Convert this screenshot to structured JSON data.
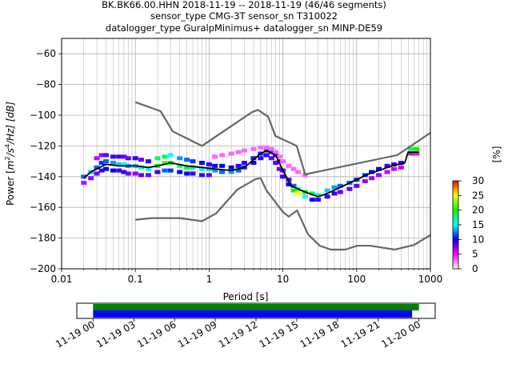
{
  "title_lines": [
    "BK.BK66.00.HHN   2018-11-19 -- 2018-11-19  (46/46 segments)",
    "sensor_type CMG-3T sensor_sn T310022",
    "datalogger_type GuralpMinimus+ datalogger_sn MINP-DE59"
  ],
  "chart_data": {
    "type": "heatmap",
    "title": "BK.BK66.00.HHN   2018-11-19 -- 2018-11-19  (46/46 segments)",
    "xlabel": "Period [s]",
    "ylabel": "Power [m²/s⁴/Hz] [dB]",
    "ylabel_parts": {
      "prefix": "Power [",
      "m": "m",
      "m_sup": "2",
      "s": "/s",
      "s_sup": "4",
      "rest": "/Hz] [dB]"
    },
    "xscale": "log",
    "xlim": [
      0.01,
      1000
    ],
    "ylim": [
      -200,
      -50
    ],
    "xticks": [
      0.01,
      0.1,
      1,
      10,
      100,
      1000
    ],
    "xtick_labels": [
      "0.01",
      "0.1",
      "1",
      "10",
      "100",
      "1000"
    ],
    "yticks": [
      -200,
      -180,
      -160,
      -140,
      -120,
      -100,
      -80,
      -60
    ],
    "ytick_labels": [
      "−200",
      "−180",
      "−160",
      "−140",
      "−120",
      "−100",
      "−80",
      "−60"
    ],
    "grid": true,
    "colorbar": {
      "label": "[%]",
      "range": [
        0,
        30
      ],
      "ticks": [
        0,
        5,
        10,
        15,
        20,
        25,
        30
      ],
      "tick_labels": [
        "0",
        "5",
        "10",
        "15",
        "20",
        "25",
        "30"
      ],
      "colormap": [
        "#ffffff",
        "#ff00ff",
        "#0000ff",
        "#00ffff",
        "#00ff00",
        "#ffff00",
        "#ff0000"
      ]
    },
    "mean_curve": {
      "color": "#000000",
      "x": [
        0.02,
        0.025,
        0.03,
        0.04,
        0.06,
        0.1,
        0.15,
        0.2,
        0.3,
        0.5,
        0.8,
        1.2,
        2,
        3,
        4,
        5,
        6,
        8,
        10,
        13,
        16,
        20,
        30,
        40,
        60,
        100,
        150,
        200,
        300,
        450,
        500,
        700
      ],
      "y": [
        -141,
        -137,
        -135,
        -132,
        -133,
        -133,
        -134,
        -133,
        -131,
        -133,
        -134,
        -135,
        -136,
        -134,
        -129,
        -125,
        -123,
        -126,
        -136,
        -146,
        -148,
        -150,
        -153,
        -151,
        -147,
        -142,
        -138,
        -136,
        -133,
        -131,
        -124,
        -124
      ]
    },
    "noise_models": [
      {
        "name": "high",
        "color": "#666666",
        "x": [
          0.1,
          0.22,
          0.32,
          0.8,
          3.8,
          4.6,
          6.3,
          7.9,
          15.4,
          20,
          354.8,
          1000
        ],
        "y": [
          -91.5,
          -97.4,
          -110.5,
          -120,
          -98,
          -96.5,
          -101,
          -113.5,
          -120,
          -138.5,
          -126,
          -111.5
        ]
      },
      {
        "name": "low",
        "color": "#666666",
        "x": [
          0.1,
          0.17,
          0.4,
          0.8,
          1.24,
          2.4,
          4.3,
          5,
          6,
          10,
          12,
          15.6,
          21.9,
          31.6,
          45,
          70,
          101,
          154,
          328,
          600,
          1000
        ],
        "y": [
          -168,
          -167,
          -167,
          -169,
          -164,
          -148.5,
          -141.5,
          -141,
          -149,
          -163,
          -166,
          -162,
          -177.5,
          -185,
          -187.5,
          -187.5,
          -185,
          -185,
          -187.5,
          -184.5,
          -178
        ]
      }
    ],
    "density_points": [
      {
        "x": 0.02,
        "y": -140,
        "p": 12
      },
      {
        "x": 0.02,
        "y": -144,
        "p": 6
      },
      {
        "x": 0.025,
        "y": -137,
        "p": 14
      },
      {
        "x": 0.025,
        "y": -141,
        "p": 7
      },
      {
        "x": 0.03,
        "y": -134,
        "p": 12
      },
      {
        "x": 0.03,
        "y": -128,
        "p": 6
      },
      {
        "x": 0.03,
        "y": -138,
        "p": 8
      },
      {
        "x": 0.035,
        "y": -126,
        "p": 7
      },
      {
        "x": 0.035,
        "y": -131,
        "p": 11
      },
      {
        "x": 0.035,
        "y": -136,
        "p": 9
      },
      {
        "x": 0.04,
        "y": -126,
        "p": 8
      },
      {
        "x": 0.04,
        "y": -130,
        "p": 12
      },
      {
        "x": 0.04,
        "y": -135,
        "p": 10
      },
      {
        "x": 0.05,
        "y": -127,
        "p": 9
      },
      {
        "x": 0.05,
        "y": -131,
        "p": 13
      },
      {
        "x": 0.05,
        "y": -136,
        "p": 10
      },
      {
        "x": 0.06,
        "y": -127,
        "p": 9
      },
      {
        "x": 0.06,
        "y": -132,
        "p": 14
      },
      {
        "x": 0.06,
        "y": -136,
        "p": 9
      },
      {
        "x": 0.07,
        "y": -127,
        "p": 8
      },
      {
        "x": 0.07,
        "y": -132,
        "p": 15
      },
      {
        "x": 0.07,
        "y": -137,
        "p": 9
      },
      {
        "x": 0.08,
        "y": -128,
        "p": 8
      },
      {
        "x": 0.08,
        "y": -133,
        "p": 13
      },
      {
        "x": 0.08,
        "y": -138,
        "p": 8
      },
      {
        "x": 0.1,
        "y": -128,
        "p": 9
      },
      {
        "x": 0.1,
        "y": -133,
        "p": 14
      },
      {
        "x": 0.1,
        "y": -138,
        "p": 7
      },
      {
        "x": 0.12,
        "y": -129,
        "p": 8
      },
      {
        "x": 0.12,
        "y": -134,
        "p": 16
      },
      {
        "x": 0.12,
        "y": -139,
        "p": 8
      },
      {
        "x": 0.15,
        "y": -130,
        "p": 9
      },
      {
        "x": 0.15,
        "y": -135,
        "p": 15
      },
      {
        "x": 0.15,
        "y": -139,
        "p": 8
      },
      {
        "x": 0.2,
        "y": -128,
        "p": 18
      },
      {
        "x": 0.2,
        "y": -133,
        "p": 20
      },
      {
        "x": 0.2,
        "y": -137,
        "p": 9
      },
      {
        "x": 0.25,
        "y": -127,
        "p": 18
      },
      {
        "x": 0.25,
        "y": -131,
        "p": 22
      },
      {
        "x": 0.25,
        "y": -136,
        "p": 12
      },
      {
        "x": 0.3,
        "y": -126,
        "p": 15
      },
      {
        "x": 0.3,
        "y": -131,
        "p": 20
      },
      {
        "x": 0.3,
        "y": -136,
        "p": 11
      },
      {
        "x": 0.4,
        "y": -128,
        "p": 13
      },
      {
        "x": 0.4,
        "y": -133,
        "p": 18
      },
      {
        "x": 0.4,
        "y": -137,
        "p": 10
      },
      {
        "x": 0.5,
        "y": -129,
        "p": 12
      },
      {
        "x": 0.5,
        "y": -134,
        "p": 19
      },
      {
        "x": 0.5,
        "y": -138,
        "p": 10
      },
      {
        "x": 0.6,
        "y": -130,
        "p": 11
      },
      {
        "x": 0.6,
        "y": -134,
        "p": 17
      },
      {
        "x": 0.6,
        "y": -138,
        "p": 9
      },
      {
        "x": 0.8,
        "y": -131,
        "p": 10
      },
      {
        "x": 0.8,
        "y": -135,
        "p": 16
      },
      {
        "x": 0.8,
        "y": -139,
        "p": 9
      },
      {
        "x": 1,
        "y": -132,
        "p": 9
      },
      {
        "x": 1,
        "y": -135,
        "p": 14
      },
      {
        "x": 1,
        "y": -139,
        "p": 8
      },
      {
        "x": 1.2,
        "y": -133,
        "p": 10
      },
      {
        "x": 1.2,
        "y": -136,
        "p": 13
      },
      {
        "x": 1.2,
        "y": -127,
        "p": 3
      },
      {
        "x": 1.5,
        "y": -133,
        "p": 10
      },
      {
        "x": 1.5,
        "y": -137,
        "p": 12
      },
      {
        "x": 1.5,
        "y": -126,
        "p": 3
      },
      {
        "x": 2,
        "y": -134,
        "p": 10
      },
      {
        "x": 2,
        "y": -137,
        "p": 13
      },
      {
        "x": 2,
        "y": -125,
        "p": 3
      },
      {
        "x": 2.5,
        "y": -133,
        "p": 9
      },
      {
        "x": 2.5,
        "y": -136,
        "p": 12
      },
      {
        "x": 2.5,
        "y": -124,
        "p": 3
      },
      {
        "x": 3,
        "y": -131,
        "p": 9
      },
      {
        "x": 3,
        "y": -134,
        "p": 11
      },
      {
        "x": 3,
        "y": -123,
        "p": 3
      },
      {
        "x": 4,
        "y": -128,
        "p": 9
      },
      {
        "x": 4,
        "y": -131,
        "p": 10
      },
      {
        "x": 4,
        "y": -122,
        "p": 3
      },
      {
        "x": 5,
        "y": -125,
        "p": 11
      },
      {
        "x": 5,
        "y": -128,
        "p": 9
      },
      {
        "x": 5,
        "y": -121,
        "p": 3
      },
      {
        "x": 6,
        "y": -123,
        "p": 12
      },
      {
        "x": 6,
        "y": -126,
        "p": 9
      },
      {
        "x": 6,
        "y": -121,
        "p": 3
      },
      {
        "x": 7,
        "y": -124,
        "p": 11
      },
      {
        "x": 7,
        "y": -128,
        "p": 8
      },
      {
        "x": 7,
        "y": -122,
        "p": 3
      },
      {
        "x": 8,
        "y": -126,
        "p": 10
      },
      {
        "x": 8,
        "y": -131,
        "p": 8
      },
      {
        "x": 8,
        "y": -124,
        "p": 3
      },
      {
        "x": 9,
        "y": -130,
        "p": 9
      },
      {
        "x": 9,
        "y": -135,
        "p": 8
      },
      {
        "x": 9,
        "y": -127,
        "p": 3
      },
      {
        "x": 10,
        "y": -136,
        "p": 8
      },
      {
        "x": 10,
        "y": -140,
        "p": 9
      },
      {
        "x": 10,
        "y": -130,
        "p": 3
      },
      {
        "x": 12,
        "y": -142,
        "p": 8
      },
      {
        "x": 12,
        "y": -145,
        "p": 10
      },
      {
        "x": 12,
        "y": -133,
        "p": 3
      },
      {
        "x": 14,
        "y": -146,
        "p": 12
      },
      {
        "x": 14,
        "y": -149,
        "p": 20
      },
      {
        "x": 14,
        "y": -135,
        "p": 3
      },
      {
        "x": 16,
        "y": -148,
        "p": 18
      },
      {
        "x": 16,
        "y": -151,
        "p": 25
      },
      {
        "x": 16,
        "y": -137,
        "p": 3
      },
      {
        "x": 20,
        "y": -150,
        "p": 20
      },
      {
        "x": 20,
        "y": -153,
        "p": 15
      },
      {
        "x": 20,
        "y": -139,
        "p": 3
      },
      {
        "x": 25,
        "y": -151,
        "p": 18
      },
      {
        "x": 25,
        "y": -155,
        "p": 10
      },
      {
        "x": 30,
        "y": -152,
        "p": 16
      },
      {
        "x": 30,
        "y": -155,
        "p": 9
      },
      {
        "x": 40,
        "y": -149,
        "p": 14
      },
      {
        "x": 40,
        "y": -153,
        "p": 9
      },
      {
        "x": 50,
        "y": -147,
        "p": 13
      },
      {
        "x": 50,
        "y": -151,
        "p": 9
      },
      {
        "x": 60,
        "y": -146,
        "p": 12
      },
      {
        "x": 60,
        "y": -150,
        "p": 8
      },
      {
        "x": 80,
        "y": -144,
        "p": 12
      },
      {
        "x": 80,
        "y": -148,
        "p": 8
      },
      {
        "x": 100,
        "y": -142,
        "p": 11
      },
      {
        "x": 100,
        "y": -146,
        "p": 8
      },
      {
        "x": 130,
        "y": -139,
        "p": 11
      },
      {
        "x": 130,
        "y": -143,
        "p": 7
      },
      {
        "x": 160,
        "y": -137,
        "p": 10
      },
      {
        "x": 160,
        "y": -141,
        "p": 7
      },
      {
        "x": 200,
        "y": -135,
        "p": 10
      },
      {
        "x": 200,
        "y": -139,
        "p": 7
      },
      {
        "x": 260,
        "y": -133,
        "p": 9
      },
      {
        "x": 260,
        "y": -137,
        "p": 6
      },
      {
        "x": 320,
        "y": -132,
        "p": 9
      },
      {
        "x": 320,
        "y": -135,
        "p": 6
      },
      {
        "x": 400,
        "y": -131,
        "p": 9
      },
      {
        "x": 400,
        "y": -134,
        "p": 6
      },
      {
        "x": 550,
        "y": -122,
        "p": 18
      },
      {
        "x": 550,
        "y": -125,
        "p": 6
      },
      {
        "x": 650,
        "y": -122,
        "p": 20
      },
      {
        "x": 650,
        "y": -125,
        "p": 5
      }
    ]
  },
  "timeline": {
    "tick_labels": [
      "11-19 00",
      "11-19 03",
      "11-19 06",
      "11-19 09",
      "11-19 12",
      "11-19 15",
      "11-19 18",
      "11-19 21",
      "11-20 00"
    ],
    "tick_hours": [
      0,
      3,
      6,
      9,
      12,
      15,
      18,
      21,
      24
    ],
    "xlim_hours": [
      -1.2,
      25.2
    ],
    "bars": [
      {
        "name": "used",
        "color": "#008000",
        "start_hour": 0,
        "end_hour": 24
      },
      {
        "name": "available",
        "color": "#0000ff",
        "start_hour": 0,
        "end_hour": 23.5
      }
    ]
  }
}
